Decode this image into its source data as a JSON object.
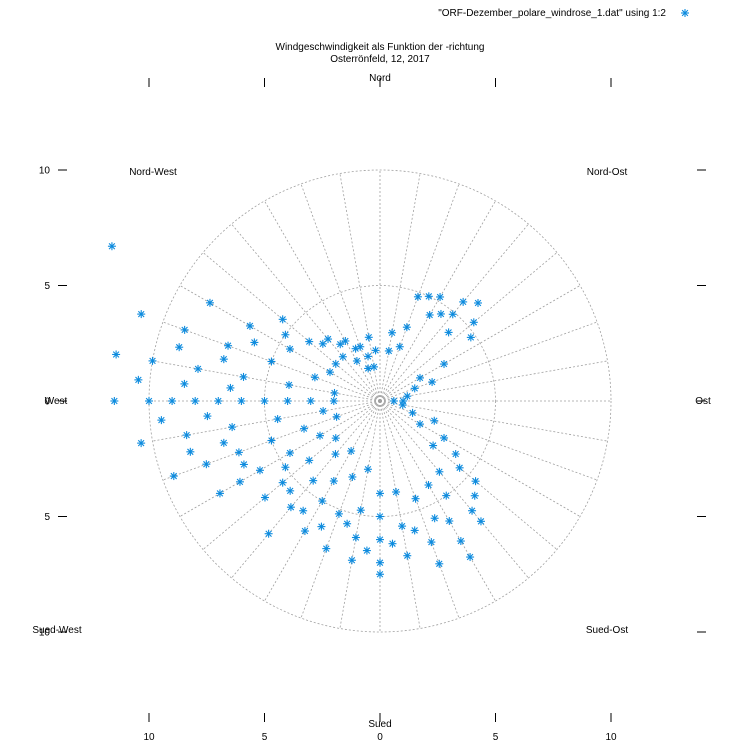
{
  "chart_data": {
    "type": "scatter",
    "title": "Windgeschwindigkeit als Funktion der -richtung",
    "subtitle": "Osterrönfeld, 12, 2017",
    "legend": {
      "label": "\"ORF-Dezember_polare_windrose_1.dat\" using 1:2",
      "placement": "top-right",
      "color": "#0d8bde"
    },
    "polar": true,
    "rmax": 10,
    "rings": [
      5,
      10
    ],
    "spoke_step_deg": 10,
    "direction_labels": {
      "nord": "Nord",
      "nord_ost": "Nord-Ost",
      "ost": "Ost",
      "sued_ost": "Sued-Ost",
      "sued": "Sued",
      "sued_west": "Sued-West",
      "west": "West",
      "nord_west": "Nord-West"
    },
    "left_ticks": [
      {
        "value": 10,
        "label": "10"
      },
      {
        "value": 5,
        "label": "5"
      },
      {
        "value": 0,
        "label": "0"
      },
      {
        "value": -5,
        "label": "5"
      },
      {
        "value": -10,
        "label": "10"
      }
    ],
    "bottom_ticks": [
      {
        "value": -10,
        "label": "10"
      },
      {
        "value": -5,
        "label": "5"
      },
      {
        "value": 0,
        "label": "0"
      },
      {
        "value": 5,
        "label": "5"
      },
      {
        "value": 10,
        "label": "10"
      }
    ],
    "point_color": "#0d8bde",
    "series": [
      {
        "marker": "asterisk",
        "angle_deg_and_speed": [
          [
            10,
            2.2
          ],
          [
            10,
            3.0
          ],
          [
            20,
            2.5
          ],
          [
            20,
            3.4
          ],
          [
            20,
            4.8
          ],
          [
            25,
            5.0
          ],
          [
            30,
            4.3
          ],
          [
            30,
            5.2
          ],
          [
            35,
            4.6
          ],
          [
            40,
            4.9
          ],
          [
            40,
            5.6
          ],
          [
            45,
            4.2
          ],
          [
            45,
            6.0
          ],
          [
            50,
            5.3
          ],
          [
            55,
            4.8
          ],
          [
            60,
            2.0
          ],
          [
            60,
            3.2
          ],
          [
            70,
            1.6
          ],
          [
            70,
            2.4
          ],
          [
            80,
            1.2
          ],
          [
            90,
            0.6
          ],
          [
            90,
            1.0
          ],
          [
            100,
            1.0
          ],
          [
            110,
            1.5
          ],
          [
            110,
            2.5
          ],
          [
            120,
            2.0
          ],
          [
            120,
            3.2
          ],
          [
            125,
            4.0
          ],
          [
            130,
            3.0
          ],
          [
            130,
            4.5
          ],
          [
            130,
            5.4
          ],
          [
            135,
            5.8
          ],
          [
            140,
            4.0
          ],
          [
            140,
            6.2
          ],
          [
            140,
            6.8
          ],
          [
            145,
            5.0
          ],
          [
            150,
            4.2
          ],
          [
            150,
            6.0
          ],
          [
            150,
            7.0
          ],
          [
            150,
            7.8
          ],
          [
            155,
            5.6
          ],
          [
            160,
            4.5
          ],
          [
            160,
            6.5
          ],
          [
            160,
            7.5
          ],
          [
            165,
            5.8
          ],
          [
            170,
            4.0
          ],
          [
            170,
            5.5
          ],
          [
            170,
            6.8
          ],
          [
            175,
            6.2
          ],
          [
            180,
            4.0
          ],
          [
            180,
            5.0
          ],
          [
            180,
            6.0
          ],
          [
            180,
            7.0
          ],
          [
            180,
            7.5
          ],
          [
            185,
            6.5
          ],
          [
            190,
            3.0
          ],
          [
            190,
            4.8
          ],
          [
            190,
            6.0
          ],
          [
            190,
            7.0
          ],
          [
            195,
            5.5
          ],
          [
            200,
            3.5
          ],
          [
            200,
            5.2
          ],
          [
            200,
            6.8
          ],
          [
            205,
            6.0
          ],
          [
            210,
            2.5
          ],
          [
            210,
            4.0
          ],
          [
            210,
            5.0
          ],
          [
            210,
            6.5
          ],
          [
            215,
            5.8
          ],
          [
            220,
            3.0
          ],
          [
            220,
            4.5
          ],
          [
            220,
            6.0
          ],
          [
            220,
            7.5
          ],
          [
            225,
            5.5
          ],
          [
            230,
            2.5
          ],
          [
            230,
            4.0
          ],
          [
            230,
            5.5
          ],
          [
            230,
            6.5
          ],
          [
            235,
            5.0
          ],
          [
            240,
            3.0
          ],
          [
            240,
            4.5
          ],
          [
            240,
            6.0
          ],
          [
            240,
            7.0
          ],
          [
            240,
            8.0
          ],
          [
            245,
            6.5
          ],
          [
            250,
            2.0
          ],
          [
            250,
            3.5
          ],
          [
            250,
            5.0
          ],
          [
            250,
            6.5
          ],
          [
            250,
            8.0
          ],
          [
            250,
            9.5
          ],
          [
            255,
            7.0
          ],
          [
            255,
            8.5
          ],
          [
            260,
            2.5
          ],
          [
            260,
            4.5
          ],
          [
            260,
            6.5
          ],
          [
            260,
            8.5
          ],
          [
            260,
            10.5
          ],
          [
            265,
            7.5
          ],
          [
            265,
            9.5
          ],
          [
            270,
            2.0
          ],
          [
            270,
            3.0
          ],
          [
            270,
            4.0
          ],
          [
            270,
            5.0
          ],
          [
            270,
            6.0
          ],
          [
            270,
            7.0
          ],
          [
            270,
            8.0
          ],
          [
            270,
            9.0
          ],
          [
            270,
            10.0
          ],
          [
            270,
            11.5
          ],
          [
            275,
            6.5
          ],
          [
            275,
            8.5
          ],
          [
            275,
            10.5
          ],
          [
            280,
            2.0
          ],
          [
            280,
            4.0
          ],
          [
            280,
            6.0
          ],
          [
            280,
            8.0
          ],
          [
            280,
            10.0
          ],
          [
            280,
            11.6
          ],
          [
            285,
            7.0
          ],
          [
            285,
            9.0
          ],
          [
            290,
            3.0
          ],
          [
            290,
            5.0
          ],
          [
            290,
            7.0
          ],
          [
            290,
            9.0
          ],
          [
            290,
            11.0
          ],
          [
            295,
            6.0
          ],
          [
            300,
            2.5
          ],
          [
            300,
            4.5
          ],
          [
            300,
            6.5
          ],
          [
            300,
            8.5
          ],
          [
            305,
            5.0
          ],
          [
            310,
            2.5
          ],
          [
            310,
            4.0
          ],
          [
            310,
            5.5
          ],
          [
            315,
            3.5
          ],
          [
            320,
            2.5
          ],
          [
            320,
            3.5
          ],
          [
            325,
            3.0
          ],
          [
            330,
            2.0
          ],
          [
            330,
            3.0
          ],
          [
            335,
            2.5
          ],
          [
            340,
            1.5
          ],
          [
            340,
            2.5
          ],
          [
            345,
            2.0
          ],
          [
            350,
            1.5
          ],
          [
            350,
            2.8
          ],
          [
            355,
            2.2
          ],
          [
            300,
            13.4
          ]
        ]
      }
    ]
  }
}
